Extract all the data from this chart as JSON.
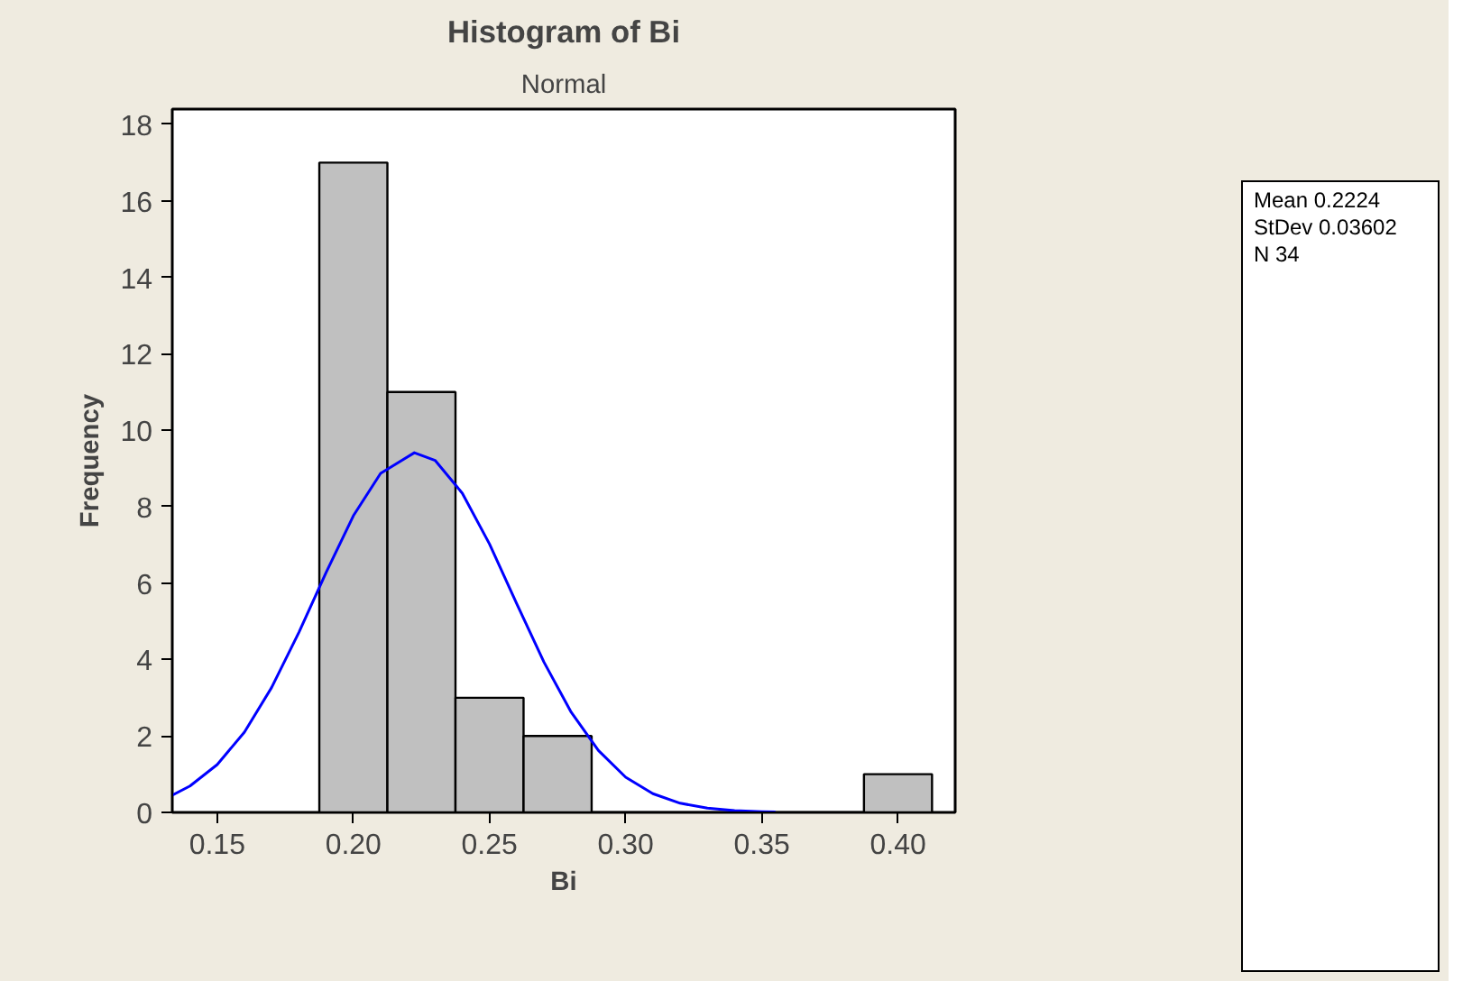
{
  "chart_data": {
    "type": "histogram",
    "title": "Histogram of Bi",
    "subtitle": "Normal",
    "xlabel": "Bi",
    "ylabel": "Frequency",
    "bins": [
      0.1875,
      0.2125,
      0.2375,
      0.2625,
      0.2875,
      0.3125,
      0.3375,
      0.3625,
      0.3875,
      0.4125
    ],
    "values": [
      17,
      11,
      3,
      2,
      0,
      0,
      0,
      0,
      1
    ],
    "color": "#c0c0c0",
    "series": [
      {
        "type": "line",
        "color": "#0000ff",
        "x": [
          0.1335,
          0.14,
          0.15,
          0.16,
          0.17,
          0.18,
          0.19,
          0.2,
          0.21,
          0.2224,
          0.23,
          0.24,
          0.25,
          0.26,
          0.27,
          0.28,
          0.29,
          0.3,
          0.31,
          0.32,
          0.33,
          0.34,
          0.35,
          0.355
        ],
        "values": [
          0.45,
          0.69,
          1.25,
          2.1,
          3.27,
          4.71,
          6.28,
          7.76,
          8.87,
          9.41,
          9.21,
          8.35,
          7.02,
          5.46,
          3.93,
          2.62,
          1.62,
          0.92,
          0.49,
          0.24,
          0.11,
          0.05,
          0.02,
          0.01
        ]
      }
    ],
    "xlim": [
      0.1335,
      0.421
    ],
    "ylim": [
      0,
      18.4
    ],
    "xticks": [
      {
        "value": 0.15,
        "label": "0.15"
      },
      {
        "value": 0.2,
        "label": "0.20"
      },
      {
        "value": 0.25,
        "label": "0.25"
      },
      {
        "value": 0.3,
        "label": "0.30"
      },
      {
        "value": 0.35,
        "label": "0.35"
      },
      {
        "value": 0.4,
        "label": "0.40"
      }
    ],
    "yticks": [
      0,
      2,
      4,
      6,
      8,
      10,
      12,
      14,
      16,
      18
    ],
    "grid": false,
    "annotations": [
      "Mean 0.2224",
      "StDev 0.03602",
      "N 34"
    ]
  }
}
